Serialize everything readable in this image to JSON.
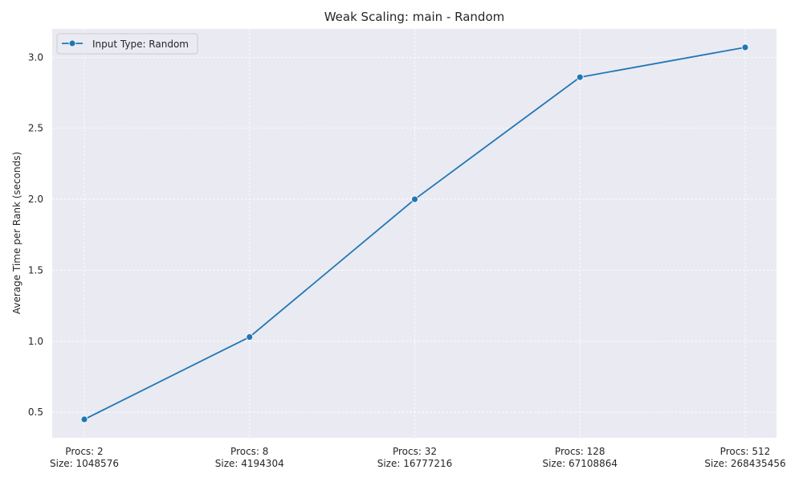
{
  "chart_data": {
    "type": "line",
    "title": "Weak Scaling: main - Random",
    "xlabel": "",
    "ylabel": "Average Time per Rank (seconds)",
    "categories": [
      [
        "Procs: 2",
        "Size: 1048576"
      ],
      [
        "Procs: 8",
        "Size: 4194304"
      ],
      [
        "Procs: 32",
        "Size: 16777216"
      ],
      [
        "Procs: 128",
        "Size: 67108864"
      ],
      [
        "Procs: 512",
        "Size: 268435456"
      ]
    ],
    "series": [
      {
        "name": "Input Type: Random",
        "values": [
          0.45,
          1.03,
          2.0,
          2.86,
          3.07
        ],
        "color": "#1f77b4"
      }
    ],
    "ylim": [
      0.32,
      3.2
    ],
    "yticks": [
      0.5,
      1.0,
      1.5,
      2.0,
      2.5,
      3.0
    ],
    "grid": true,
    "legend_position": "top-left",
    "background_color": "#eaeaf2",
    "grid_color": "#ffffff"
  }
}
